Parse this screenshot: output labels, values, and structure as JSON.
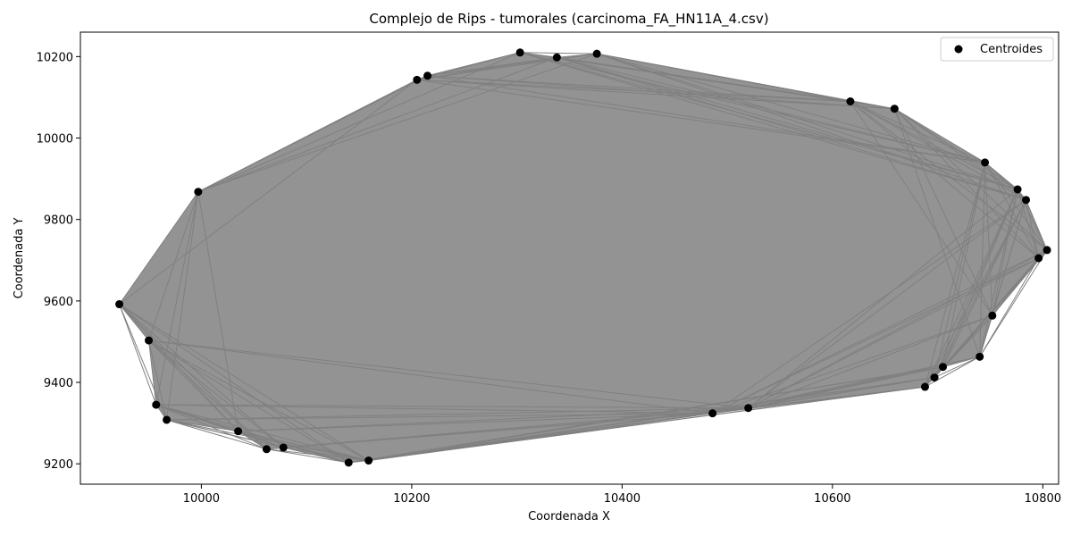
{
  "chart_data": {
    "type": "scatter",
    "title": "Complejo de Rips - tumorales (carcinoma_FA_HN11A_4.csv)",
    "xlabel": "Coordenada X",
    "ylabel": "Coordenada Y",
    "xlim": [
      9885,
      10815
    ],
    "ylim": [
      9150,
      10260
    ],
    "xticks": [
      10000,
      10200,
      10400,
      10600,
      10800
    ],
    "yticks": [
      9200,
      9400,
      9600,
      9800,
      10000,
      10200
    ],
    "xtick_labels": [
      "10000",
      "10200",
      "10400",
      "10600",
      "10800"
    ],
    "ytick_labels": [
      "9200",
      "9400",
      "9600",
      "9800",
      "10000",
      "10200"
    ],
    "grid": false,
    "legend_position": "top-right",
    "point_color": "#000000",
    "edge_color": "#808080",
    "series": [
      {
        "name": "Centroides",
        "points": [
          [
            9922,
            9592
          ],
          [
            9950,
            9503
          ],
          [
            9957,
            9345
          ],
          [
            9967,
            9308
          ],
          [
            9997,
            9868
          ],
          [
            10035,
            9280
          ],
          [
            10062,
            9236
          ],
          [
            10078,
            9240
          ],
          [
            10140,
            9203
          ],
          [
            10159,
            9208
          ],
          [
            10205,
            10143
          ],
          [
            10215,
            10153
          ],
          [
            10303,
            10210
          ],
          [
            10338,
            10198
          ],
          [
            10376,
            10207
          ],
          [
            10486,
            9324
          ],
          [
            10520,
            9337
          ],
          [
            10617,
            10090
          ],
          [
            10659,
            10072
          ],
          [
            10688,
            9389
          ],
          [
            10697,
            9412
          ],
          [
            10705,
            9438
          ],
          [
            10740,
            9463
          ],
          [
            10745,
            9940
          ],
          [
            10752,
            9564
          ],
          [
            10776,
            9874
          ],
          [
            10784,
            9848
          ],
          [
            10796,
            9705
          ],
          [
            10804,
            9725
          ]
        ]
      }
    ]
  }
}
